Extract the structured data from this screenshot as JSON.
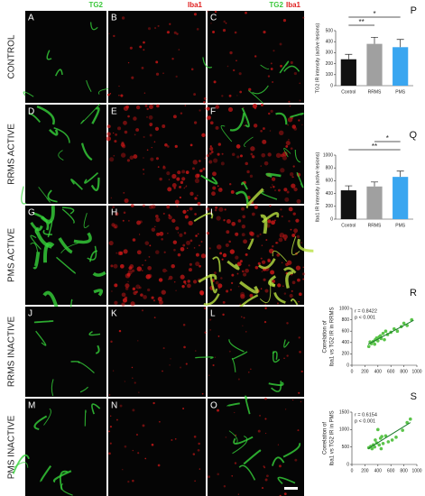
{
  "column_headers": [
    {
      "parts": [
        {
          "text": "TG2",
          "color": "#3cc83c"
        }
      ]
    },
    {
      "parts": [
        {
          "text": "Iba1",
          "color": "#e02020"
        }
      ]
    },
    {
      "parts": [
        {
          "text": "TG2",
          "color": "#3cc83c"
        },
        {
          "text": "Iba1",
          "color": "#e02020"
        }
      ]
    }
  ],
  "rows": [
    "CONTROL",
    "RRMS ACTIVE",
    "PMS ACTIVE",
    "RRMS INACTIVE",
    "PMS INACTIVE"
  ],
  "panels": [
    "A",
    "B",
    "C",
    "D",
    "E",
    "F",
    "G",
    "H",
    "I",
    "J",
    "K",
    "L",
    "M",
    "N",
    "O"
  ],
  "chart_data": [
    {
      "type": "bar",
      "label": "P",
      "ylabel": "TG2 IR intensity (active lesions)",
      "categories": [
        "Control",
        "RRMS",
        "PMS"
      ],
      "values": [
        240,
        380,
        350
      ],
      "errors": [
        45,
        60,
        70
      ],
      "colors": [
        "#111111",
        "#a0a0a0",
        "#3aa6f0"
      ],
      "ylim": [
        0,
        500
      ],
      "yticks": [
        0,
        100,
        200,
        300,
        400,
        500
      ],
      "significance": [
        {
          "between": [
            "Control",
            "RRMS"
          ],
          "label": "**"
        },
        {
          "between": [
            "Control",
            "PMS"
          ],
          "label": "*"
        }
      ]
    },
    {
      "type": "bar",
      "label": "Q",
      "ylabel": "Iba1 IR intensity (active lesions)",
      "categories": [
        "Control",
        "RRMS",
        "PMS"
      ],
      "values": [
        450,
        510,
        660
      ],
      "errors": [
        70,
        70,
        90
      ],
      "colors": [
        "#111111",
        "#a0a0a0",
        "#3aa6f0"
      ],
      "ylim": [
        0,
        1000
      ],
      "yticks": [
        0,
        200,
        400,
        600,
        800,
        1000
      ],
      "significance": [
        {
          "between": [
            "Control",
            "PMS"
          ],
          "label": "**"
        },
        {
          "between": [
            "RRMS",
            "PMS"
          ],
          "label": "*"
        }
      ]
    },
    {
      "type": "scatter",
      "label": "R",
      "ylabel": [
        "Correlation of",
        "Iba1 vs TG2 IR in RRMS"
      ],
      "annotations": [
        "r = 0.8422",
        "p < 0.001"
      ],
      "x": [
        260,
        300,
        330,
        350,
        380,
        400,
        420,
        440,
        450,
        480,
        500,
        520,
        550,
        600,
        650,
        700,
        760,
        800,
        850,
        920,
        280,
        360
      ],
      "y": [
        330,
        380,
        420,
        370,
        480,
        430,
        500,
        520,
        470,
        560,
        450,
        600,
        540,
        580,
        640,
        600,
        680,
        740,
        700,
        800,
        410,
        450
      ],
      "color": "#5bc44a",
      "fit": {
        "x": [
          250,
          950
        ],
        "y": [
          370,
          790
        ],
        "color": "#1a7a2a"
      },
      "xlim": [
        0,
        1000
      ],
      "xticks": [
        0,
        200,
        400,
        600,
        800,
        1000
      ],
      "ylim": [
        0,
        1000
      ],
      "yticks": [
        0,
        200,
        400,
        600,
        800,
        1000
      ]
    },
    {
      "type": "scatter",
      "label": "S",
      "ylabel": [
        "Correlation of",
        "Iba1 vs TG2 IR in PMS"
      ],
      "annotations": [
        "r = 0.6154",
        "p < 0.001"
      ],
      "x": [
        260,
        290,
        310,
        330,
        350,
        360,
        380,
        400,
        420,
        440,
        460,
        480,
        520,
        560,
        620,
        680,
        780,
        850,
        900,
        450
      ],
      "y": [
        480,
        520,
        450,
        560,
        500,
        700,
        620,
        1000,
        560,
        750,
        800,
        600,
        820,
        650,
        700,
        780,
        980,
        1200,
        1300,
        450
      ],
      "color": "#5bc44a",
      "fit": {
        "x": [
          250,
          900
        ],
        "y": [
          450,
          1200
        ],
        "color": "#1a7a2a"
      },
      "xlim": [
        0,
        1000
      ],
      "xticks": [
        0,
        200,
        400,
        600,
        800,
        1000
      ],
      "ylim": [
        0,
        1500
      ],
      "yticks": [
        0,
        500,
        1000,
        1500
      ]
    }
  ]
}
